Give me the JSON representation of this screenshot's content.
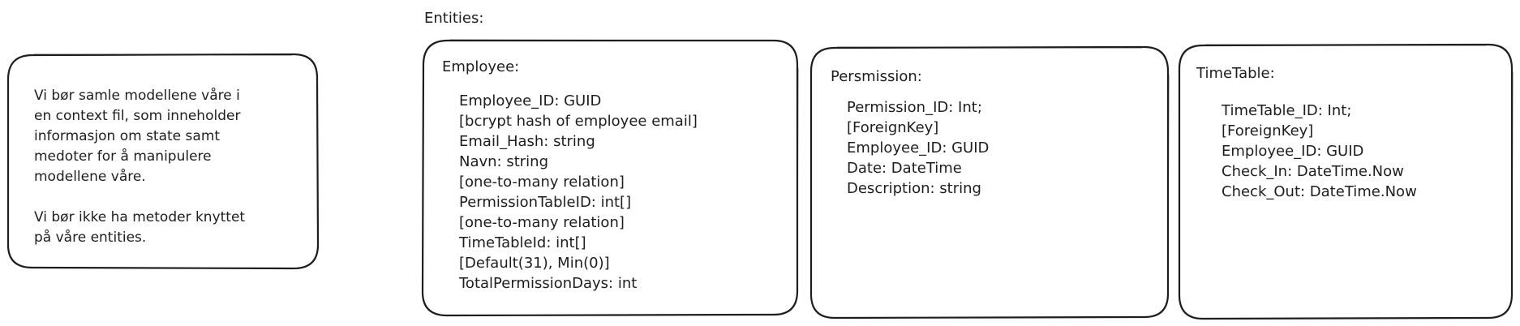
{
  "note": {
    "paragraph1": [
      "Vi bør samle modellene våre i",
      "en context fil, som inneholder",
      "informasjon om state samt",
      "medoter for å manipulere",
      "modellene våre."
    ],
    "paragraph2": [
      "Vi bør ikke ha metoder knyttet",
      "på våre entities."
    ]
  },
  "entities_label": "Entities:",
  "employee": {
    "title": "Employee:",
    "fields": [
      "Employee_ID: GUID",
      "[bcrypt hash of employee email]",
      "Email_Hash: string",
      "Navn: string",
      "[one-to-many relation]",
      "PermissionTableID: int[]",
      "[one-to-many relation]",
      "TimeTableId: int[]",
      "[Default(31), Min(0)]",
      "TotalPermissionDays: int"
    ]
  },
  "permission": {
    "title": "Persmission:",
    "fields": [
      "Permission_ID: Int;",
      "[ForeignKey]",
      "Employee_ID: GUID",
      "Date: DateTime",
      "Description: string"
    ]
  },
  "timetable": {
    "title": "TimeTable:",
    "fields": [
      "TimeTable_ID: Int;",
      "[ForeignKey]",
      "Employee_ID: GUID",
      "Check_In: DateTime.Now",
      "Check_Out: DateTime.Now"
    ]
  },
  "colors": {
    "stroke": "#1e1e1e",
    "background": "#ffffff"
  }
}
